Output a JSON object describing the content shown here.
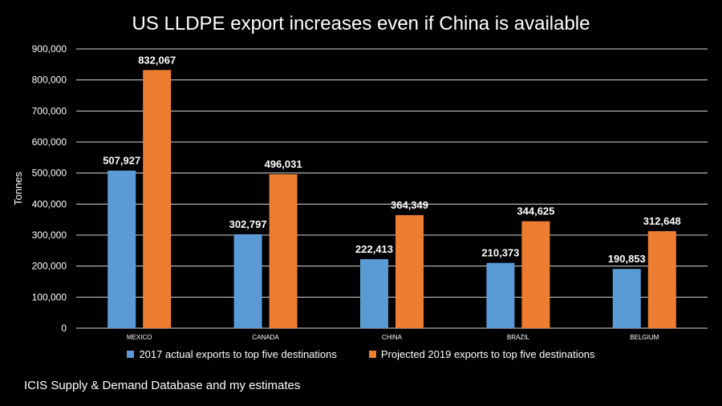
{
  "chart_data": {
    "type": "bar",
    "title": "US LLDPE export increases even if China is available",
    "ylabel": "Tonnes",
    "xlabel": "",
    "ylim": [
      0,
      900000
    ],
    "yticks": [
      0,
      100000,
      200000,
      300000,
      400000,
      500000,
      600000,
      700000,
      800000,
      900000
    ],
    "ytick_labels": [
      "0",
      "100,000",
      "200,000",
      "300,000",
      "400,000",
      "500,000",
      "600,000",
      "700,000",
      "800,000",
      "900,000"
    ],
    "grid": true,
    "legend_position": "bottom",
    "categories": [
      "MEXICO",
      "CANADA",
      "CHINA",
      "BRAZIL",
      "BELGIUM"
    ],
    "series": [
      {
        "name": "2017 actual exports to top five destinations",
        "color": "#5b9bd5",
        "values": [
          507927,
          302797,
          222413,
          210373,
          190853
        ],
        "labels": [
          "507,927",
          "302,797",
          "222,413",
          "210,373",
          "190,853"
        ]
      },
      {
        "name": "Projected 2019 exports to top five destinations",
        "color": "#ed7d31",
        "values": [
          832067,
          496031,
          364349,
          344625,
          312648
        ],
        "labels": [
          "832,067",
          "496,031",
          "364,349",
          "344,625",
          "312,648"
        ]
      }
    ]
  },
  "source_note": "ICIS Supply & Demand Database and my estimates"
}
